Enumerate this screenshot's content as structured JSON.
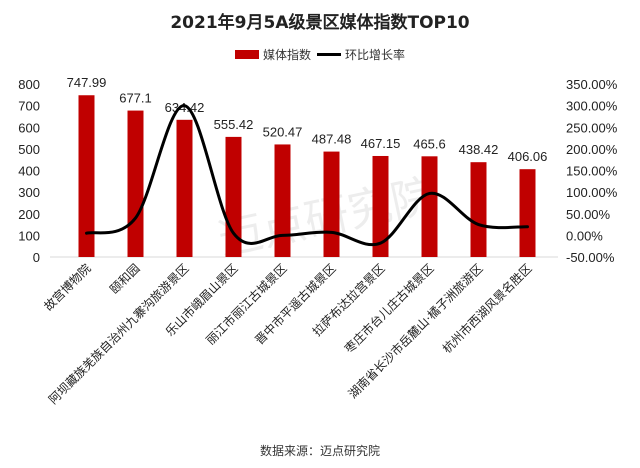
{
  "chart_data": {
    "type": "bar",
    "title": "2021年9月5A级景区媒体指数TOP10",
    "categories": [
      "故宫博物院",
      "颐和园",
      "阿坝藏族羌族自治州九寨沟旅游景区",
      "乐山市峨眉山景区",
      "丽江市丽江古城景区",
      "晋中市平遥古城景区",
      "拉萨布达拉宫景区",
      "枣庄市台儿庄古城景区",
      "湖南省长沙市岳麓山·橘子洲旅游区",
      "杭州市西湖风景名胜区"
    ],
    "series": [
      {
        "name": "媒体指数",
        "type": "bar",
        "axis": "left",
        "color": "#c00000",
        "values": [
          747.99,
          677.1,
          634.42,
          555.42,
          520.47,
          487.48,
          467.15,
          465.6,
          438.42,
          406.06
        ]
      },
      {
        "name": "环比增长率",
        "type": "line",
        "axis": "right",
        "color": "#000000",
        "values": [
          5,
          40,
          300,
          5,
          0,
          7,
          -18,
          97,
          25,
          20
        ],
        "unit": "%"
      }
    ],
    "left_axis": {
      "min": 0,
      "max": 800,
      "ticks": [
        "0",
        "100",
        "200",
        "300",
        "400",
        "500",
        "600",
        "700",
        "800"
      ]
    },
    "right_axis": {
      "min": -50,
      "max": 350,
      "ticks": [
        "-50.00%",
        "0.00%",
        "50.00%",
        "100.00%",
        "150.00%",
        "200.00%",
        "250.00%",
        "300.00%",
        "350.00%"
      ]
    },
    "data_labels": [
      "747.99",
      "677.1",
      "634.42",
      "555.42",
      "520.47",
      "487.48",
      "467.15",
      "465.6",
      "438.42",
      "406.06"
    ],
    "legend_position": "top",
    "grid": false,
    "xlabel": "",
    "ylabel": ""
  },
  "title": "2021年9月5A级景区媒体指数TOP10",
  "legend": {
    "bar_label": "媒体指数",
    "line_label": "环比增长率"
  },
  "source": "数据来源：迈点研究院",
  "watermark": "迈点研究院"
}
